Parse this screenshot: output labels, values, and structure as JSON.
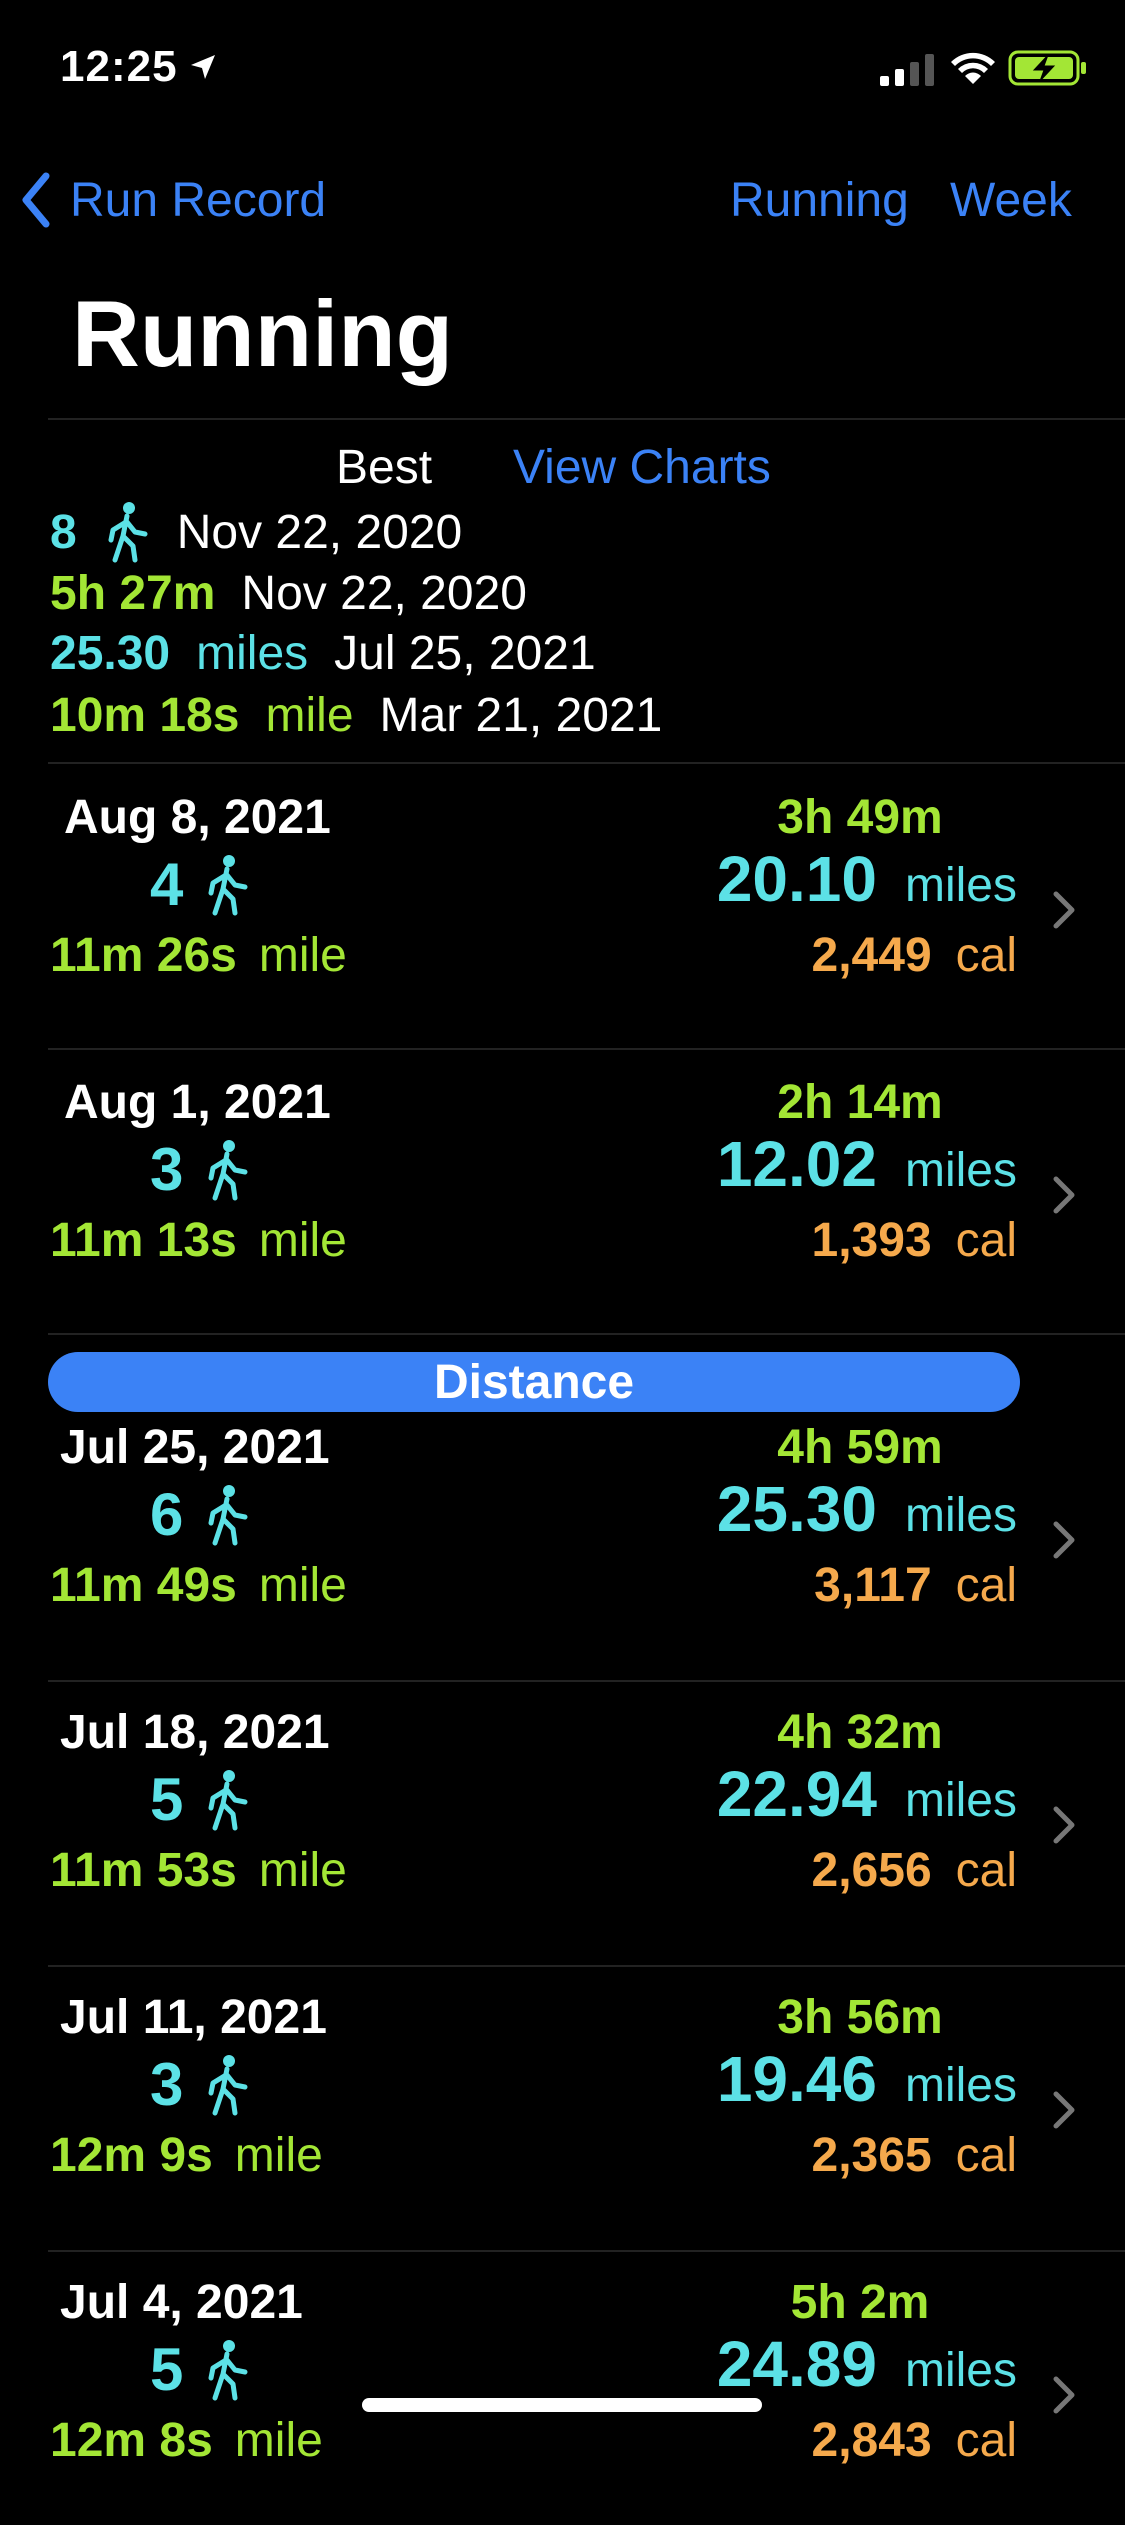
{
  "status_bar": {
    "time": "12:25"
  },
  "nav": {
    "back_label": "Run Record",
    "right_items": [
      "Running",
      "Week"
    ]
  },
  "page_title": "Running",
  "best": {
    "label": "Best",
    "view_charts": "View Charts",
    "count": "8",
    "count_date": "Nov 22, 2020",
    "duration": "5h 27m",
    "duration_date": "Nov 22, 2020",
    "distance": "25.30",
    "distance_unit": "miles",
    "distance_date": "Jul 25, 2021",
    "pace": "10m 18s",
    "pace_unit": "mile",
    "pace_date": "Mar 21, 2021"
  },
  "section_label": "Distance",
  "runs": [
    {
      "date": "Aug 8, 2021",
      "count": "4",
      "pace": "11m 26s",
      "pace_unit": "mile",
      "duration": "3h 49m",
      "distance": "20.10",
      "distance_unit": "miles",
      "calories": "2,449",
      "cal_unit": "cal"
    },
    {
      "date": "Aug 1, 2021",
      "count": "3",
      "pace": "11m 13s",
      "pace_unit": "mile",
      "duration": "2h 14m",
      "distance": "12.02",
      "distance_unit": "miles",
      "calories": "1,393",
      "cal_unit": "cal"
    },
    {
      "date": "Jul 25, 2021",
      "count": "6",
      "pace": "11m 49s",
      "pace_unit": "mile",
      "duration": "4h 59m",
      "distance": "25.30",
      "distance_unit": "miles",
      "calories": "3,117",
      "cal_unit": "cal"
    },
    {
      "date": "Jul 18, 2021",
      "count": "5",
      "pace": "11m 53s",
      "pace_unit": "mile",
      "duration": "4h 32m",
      "distance": "22.94",
      "distance_unit": "miles",
      "calories": "2,656",
      "cal_unit": "cal"
    },
    {
      "date": "Jul 11, 2021",
      "count": "3",
      "pace": "12m 9s",
      "pace_unit": "mile",
      "duration": "3h 56m",
      "distance": "19.46",
      "distance_unit": "miles",
      "calories": "2,365",
      "cal_unit": "cal"
    },
    {
      "date": "Jul 4, 2021",
      "count": "5",
      "pace": "12m 8s",
      "pace_unit": "mile",
      "duration": "5h 2m",
      "distance": "24.89",
      "distance_unit": "miles",
      "calories": "2,843",
      "cal_unit": "cal"
    }
  ],
  "colors": {
    "accent": "#3b82f6",
    "cyan": "#5ce1e6",
    "green": "#a3e635",
    "orange": "#f5a94c",
    "background": "#000000"
  }
}
